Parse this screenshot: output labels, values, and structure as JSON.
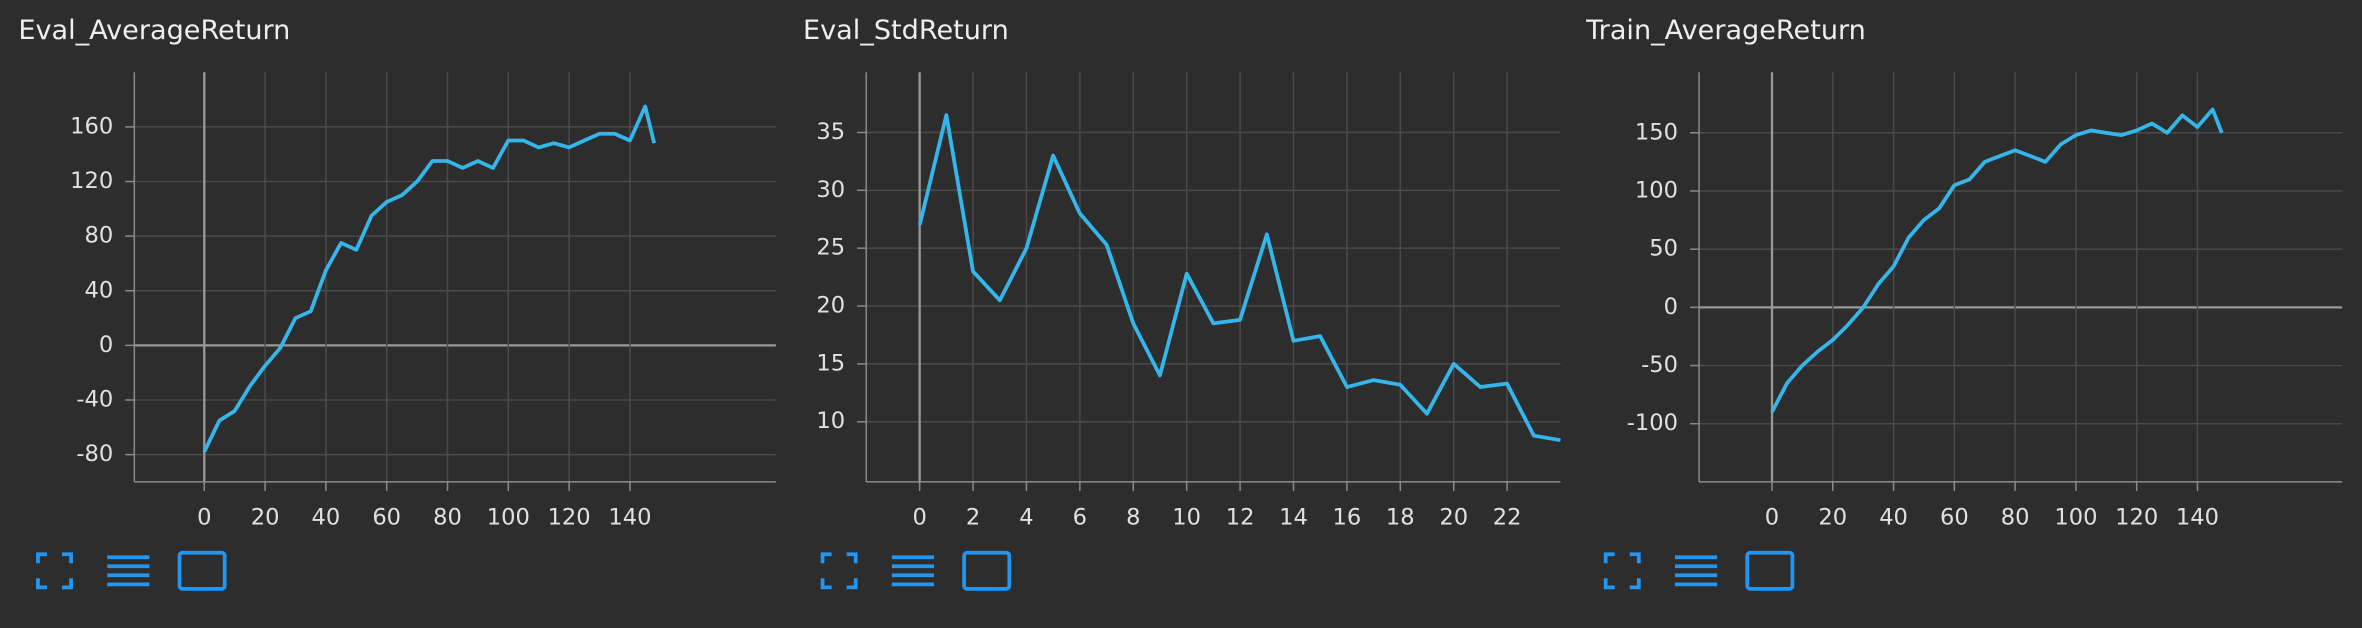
{
  "chart_data": [
    {
      "type": "line",
      "title": "Eval_AverageReturn",
      "x": [
        0,
        5,
        10,
        15,
        20,
        25,
        30,
        35,
        40,
        45,
        50,
        55,
        60,
        65,
        70,
        75,
        80,
        85,
        90,
        95,
        100,
        105,
        110,
        115,
        120,
        125,
        130,
        135,
        140,
        145,
        148
      ],
      "series": [
        {
          "color": "#35b6ea",
          "values": [
            -78,
            -55,
            -48,
            -30,
            -15,
            -2,
            20,
            25,
            55,
            75,
            70,
            95,
            105,
            110,
            120,
            135,
            135,
            130,
            135,
            130,
            150,
            150,
            145,
            148,
            145,
            150,
            155,
            155,
            150,
            175,
            148
          ]
        }
      ],
      "xlim": [
        -23,
        188
      ],
      "ylim": [
        -100,
        200
      ],
      "xticks": [
        0,
        20,
        40,
        60,
        80,
        100,
        120,
        140
      ],
      "yticks": [
        -80,
        -40,
        0,
        40,
        80,
        120,
        160
      ]
    },
    {
      "type": "line",
      "title": "Eval_StdReturn",
      "x": [
        0,
        1,
        2,
        3,
        4,
        5,
        6,
        7,
        8,
        9,
        10,
        11,
        12,
        13,
        14,
        15,
        16,
        17,
        18,
        19,
        20,
        21,
        22,
        23,
        24
      ],
      "series": [
        {
          "color": "#35b6ea",
          "values": [
            27,
            36.5,
            23,
            20.5,
            25,
            33,
            28,
            25.3,
            18.5,
            14,
            22.8,
            18.5,
            18.8,
            26.2,
            17,
            17.4,
            13,
            13.6,
            13.2,
            10.7,
            15,
            13,
            13.3,
            8.8,
            8.4
          ]
        }
      ],
      "xlim": [
        -2,
        24
      ],
      "ylim": [
        4.8,
        40.2
      ],
      "xticks": [
        0,
        2,
        4,
        6,
        8,
        10,
        12,
        14,
        16,
        18,
        20,
        22
      ],
      "yticks": [
        10,
        15,
        20,
        25,
        30,
        35
      ]
    },
    {
      "type": "line",
      "title": "Train_AverageReturn",
      "x": [
        0,
        5,
        10,
        15,
        20,
        25,
        30,
        35,
        40,
        45,
        50,
        55,
        60,
        65,
        70,
        75,
        80,
        85,
        90,
        95,
        100,
        105,
        110,
        115,
        120,
        125,
        130,
        135,
        140,
        145,
        148
      ],
      "series": [
        {
          "color": "#35b6ea",
          "values": [
            -90,
            -65,
            -50,
            -38,
            -28,
            -15,
            0,
            20,
            35,
            60,
            75,
            85,
            105,
            110,
            125,
            130,
            135,
            130,
            125,
            140,
            148,
            152,
            150,
            148,
            152,
            158,
            150,
            165,
            155,
            170,
            150
          ]
        }
      ],
      "xlim": [
        -24,
        187.6
      ],
      "ylim": [
        -150,
        202
      ],
      "xticks": [
        0,
        20,
        40,
        60,
        80,
        100,
        120,
        140
      ],
      "yticks": [
        -100,
        -50,
        0,
        50,
        100,
        150
      ]
    }
  ]
}
